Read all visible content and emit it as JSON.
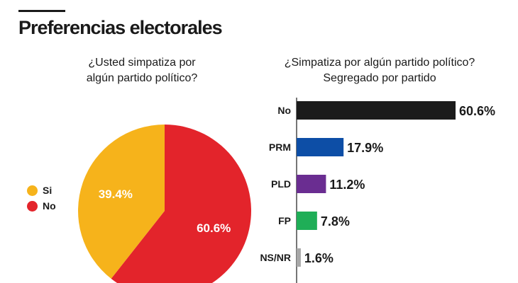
{
  "header": {
    "title": "Preferencias electorales"
  },
  "chart_data": [
    {
      "type": "pie",
      "title": "¿Usted simpatiza por algún partido político?",
      "title_lines": [
        "¿Usted simpatiza por",
        "algún partido político?"
      ],
      "slices": [
        {
          "label": "Si",
          "value": 39.4,
          "display": "39.4%",
          "color": "#f6b31b"
        },
        {
          "label": "No",
          "value": 60.6,
          "display": "60.6%",
          "color": "#e3242b"
        }
      ],
      "legend": "left"
    },
    {
      "type": "bar",
      "orientation": "horizontal",
      "title": "¿Simpatiza por algún partido político? Segregado por partido",
      "title_lines": [
        "¿Simpatiza por algún partido político?",
        "Segregado por partido"
      ],
      "categories": [
        "No",
        "PRM",
        "PLD",
        "FP",
        "NS/NR"
      ],
      "values": [
        60.6,
        17.9,
        11.2,
        7.8,
        1.6
      ],
      "value_labels": [
        "60.6%",
        "17.9%",
        "11.2%",
        "7.8%",
        "1.6%"
      ],
      "colors": [
        "#1b1b1b",
        "#0d4ea6",
        "#6a2d91",
        "#1fae57",
        "#a8a8a8"
      ]
    }
  ]
}
